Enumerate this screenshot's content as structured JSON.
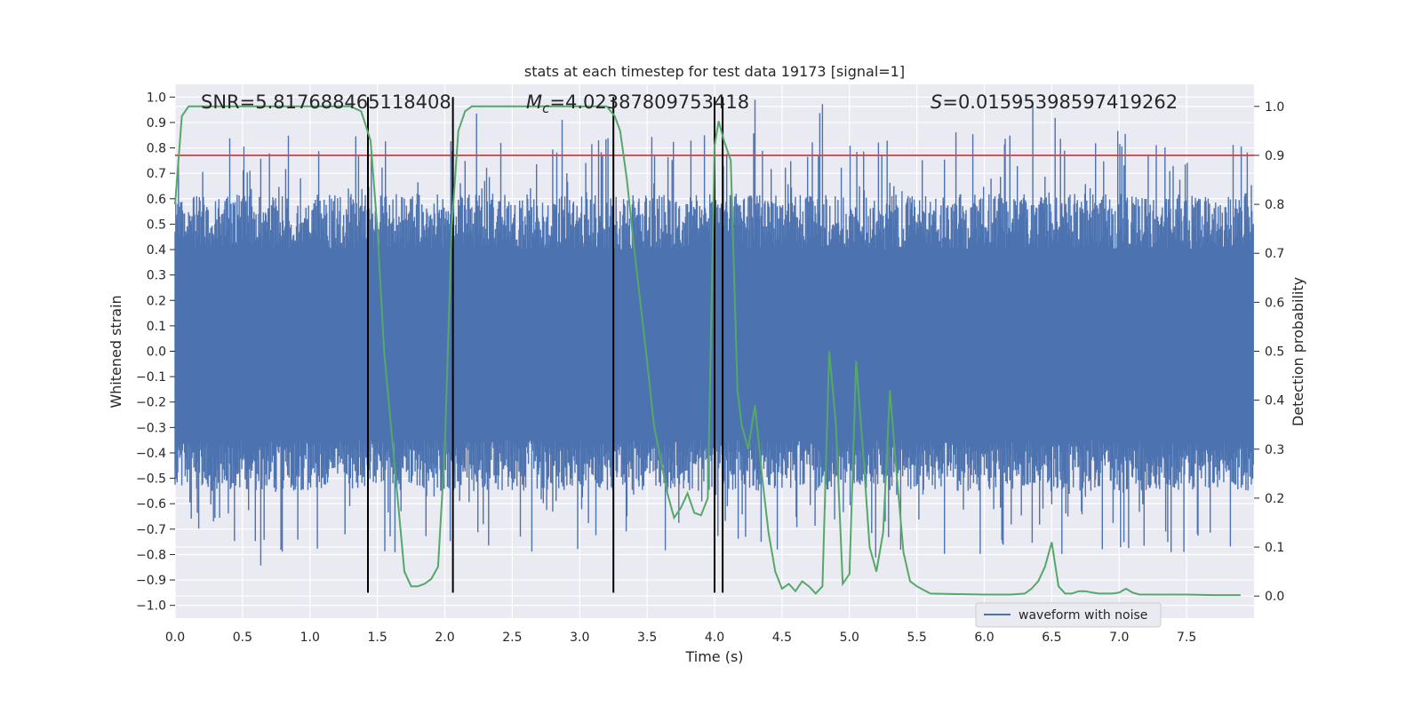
{
  "chart_data": {
    "type": "line",
    "title": "stats at each timestep for test data 19173 [signal=1]",
    "xlabel": "Time (s)",
    "ylabel_left": "Whitened strain",
    "ylabel_right": "Detection probability",
    "annotations": {
      "snr": "SNR=5.817688465118408",
      "mc_symbol": "M",
      "mc_subscript": "c",
      "mc_value": "=4.02387809753418",
      "s_symbol": "S",
      "s_value": "=0.015953985974192​62"
    },
    "xlim": [
      0.0,
      8.0
    ],
    "ylim_left": [
      -1.05,
      1.05
    ],
    "ylim_right": [
      -0.045,
      1.045
    ],
    "x_ticks": [
      "0.0",
      "0.5",
      "1.0",
      "1.5",
      "2.0",
      "2.5",
      "3.0",
      "3.5",
      "4.0",
      "4.5",
      "5.0",
      "5.5",
      "6.0",
      "6.5",
      "7.0",
      "7.5"
    ],
    "x_tick_values": [
      0.0,
      0.5,
      1.0,
      1.5,
      2.0,
      2.5,
      3.0,
      3.5,
      4.0,
      4.5,
      5.0,
      5.5,
      6.0,
      6.5,
      7.0,
      7.5
    ],
    "y_left_ticks": [
      "1.0",
      "0.9",
      "0.8",
      "0.7",
      "0.6",
      "0.5",
      "0.4",
      "0.3",
      "0.2",
      "0.1",
      "0.0",
      "−0.1",
      "−0.2",
      "−0.3",
      "−0.4",
      "−0.5",
      "−0.6",
      "−0.7",
      "−0.8",
      "−0.9",
      "−1.0"
    ],
    "y_left_tick_values": [
      1.0,
      0.9,
      0.8,
      0.7,
      0.6,
      0.5,
      0.4,
      0.3,
      0.2,
      0.1,
      0.0,
      -0.1,
      -0.2,
      -0.3,
      -0.4,
      -0.5,
      -0.6,
      -0.7,
      -0.8,
      -0.9,
      -1.0
    ],
    "y_right_ticks": [
      "1.0",
      "0.9",
      "0.8",
      "0.7",
      "0.6",
      "0.5",
      "0.4",
      "0.3",
      "0.2",
      "0.1",
      "0.0"
    ],
    "y_right_tick_values": [
      1.0,
      0.9,
      0.8,
      0.7,
      0.6,
      0.5,
      0.4,
      0.3,
      0.2,
      0.1,
      0.0
    ],
    "grid": true,
    "legend": {
      "placement": "lower-right",
      "entries": [
        "waveform with noise"
      ]
    },
    "threshold_probability": 0.9,
    "vertical_lines_x": [
      1.43,
      2.06,
      3.25,
      4.0,
      4.06
    ],
    "vertical_lines_ymax": 1.0,
    "vertical_lines_ymin": -0.95,
    "waveform": {
      "name": "waveform with noise",
      "band_min": -0.35,
      "band_max": 0.4,
      "extreme_max": 0.99,
      "extreme_min": -0.95,
      "samples": 1600,
      "seed": 19173
    },
    "probability_series": {
      "x": [
        0.0,
        0.05,
        0.1,
        0.2,
        0.3,
        0.5,
        0.7,
        0.9,
        1.1,
        1.3,
        1.38,
        1.45,
        1.5,
        1.55,
        1.6,
        1.65,
        1.7,
        1.75,
        1.8,
        1.85,
        1.9,
        1.95,
        2.0,
        2.05,
        2.1,
        2.15,
        2.2,
        2.3,
        2.5,
        2.7,
        2.9,
        3.1,
        3.2,
        3.26,
        3.3,
        3.35,
        3.4,
        3.45,
        3.5,
        3.55,
        3.6,
        3.65,
        3.7,
        3.75,
        3.8,
        3.85,
        3.9,
        3.95,
        4.0,
        4.03,
        4.07,
        4.12,
        4.17,
        4.2,
        4.25,
        4.3,
        4.35,
        4.4,
        4.45,
        4.5,
        4.55,
        4.6,
        4.65,
        4.7,
        4.75,
        4.8,
        4.85,
        4.9,
        4.95,
        5.0,
        5.05,
        5.1,
        5.15,
        5.2,
        5.25,
        5.3,
        5.35,
        5.4,
        5.45,
        5.5,
        5.6,
        5.8,
        6.0,
        6.2,
        6.3,
        6.35,
        6.4,
        6.45,
        6.5,
        6.55,
        6.6,
        6.65,
        6.7,
        6.75,
        6.8,
        6.85,
        6.9,
        6.95,
        7.0,
        7.05,
        7.1,
        7.15,
        7.2,
        7.3,
        7.5,
        7.7,
        7.9
      ],
      "y": [
        0.8,
        0.98,
        1.0,
        1.0,
        1.0,
        1.0,
        1.0,
        1.0,
        1.0,
        1.0,
        0.99,
        0.93,
        0.75,
        0.5,
        0.35,
        0.2,
        0.05,
        0.02,
        0.02,
        0.025,
        0.035,
        0.06,
        0.3,
        0.75,
        0.95,
        0.99,
        1.0,
        1.0,
        1.0,
        1.0,
        1.0,
        1.0,
        1.0,
        0.98,
        0.95,
        0.85,
        0.72,
        0.6,
        0.48,
        0.35,
        0.28,
        0.21,
        0.16,
        0.18,
        0.21,
        0.17,
        0.165,
        0.2,
        0.92,
        0.97,
        0.93,
        0.89,
        0.42,
        0.35,
        0.3,
        0.39,
        0.25,
        0.13,
        0.05,
        0.015,
        0.025,
        0.01,
        0.03,
        0.02,
        0.005,
        0.02,
        0.5,
        0.35,
        0.025,
        0.045,
        0.48,
        0.3,
        0.1,
        0.05,
        0.13,
        0.42,
        0.25,
        0.09,
        0.03,
        0.02,
        0.005,
        0.004,
        0.003,
        0.003,
        0.005,
        0.015,
        0.03,
        0.06,
        0.11,
        0.02,
        0.005,
        0.005,
        0.01,
        0.01,
        0.007,
        0.005,
        0.005,
        0.005,
        0.007,
        0.015,
        0.007,
        0.003,
        0.003,
        0.003,
        0.003,
        0.002,
        0.002
      ]
    },
    "colors": {
      "axes_bg": "#eaeaf2",
      "grid": "#ffffff",
      "waveform": "#4c72b0",
      "probability": "#55a868",
      "threshold": "#c44e52",
      "vlines": "#000000"
    }
  }
}
